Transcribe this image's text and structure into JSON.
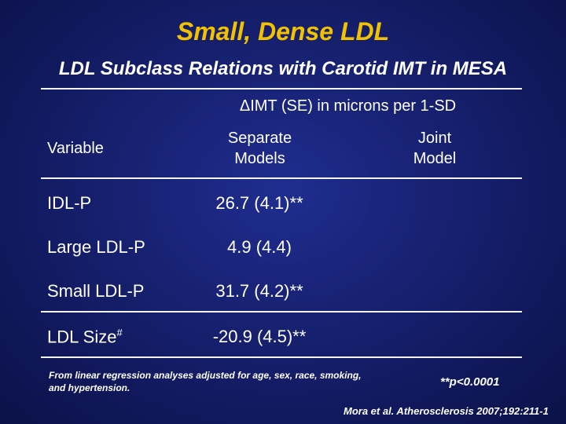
{
  "slide": {
    "title": "Small, Dense LDL",
    "subtitle": "LDL Subclass Relations with Carotid IMT in MESA"
  },
  "table": {
    "group_header": "ΔIMT (SE) in microns per 1-SD",
    "columns": {
      "variable": "Variable",
      "separate_line1": "Separate",
      "separate_line2": "Models",
      "joint_line1": "Joint",
      "joint_line2": "Model"
    },
    "rows": [
      {
        "label": "IDL-P",
        "label_sup": "",
        "separate": "26.7 (4.1)**",
        "joint": ""
      },
      {
        "label": "Large LDL-P",
        "label_sup": "",
        "separate": "4.9 (4.4)",
        "joint": ""
      },
      {
        "label": "Small LDL-P",
        "label_sup": "",
        "separate": "31.7 (4.2)**",
        "joint": ""
      },
      {
        "label": "LDL Size",
        "label_sup": "#",
        "separate": "-20.9 (4.5)**",
        "joint": ""
      }
    ]
  },
  "footnote": "From linear regression analyses adjusted for age, sex, race, smoking, and hypertension.",
  "pvalue_note": "**p<0.0001",
  "citation": "Mora et al. Atherosclerosis 2007;192:211-1",
  "colors": {
    "title": "#f2c200",
    "background": "#16206e",
    "text": "#ffffff"
  }
}
